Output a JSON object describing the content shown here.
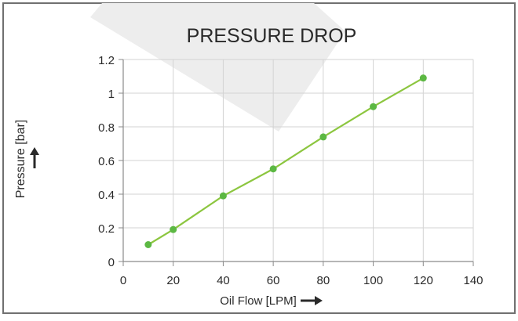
{
  "chart_data": {
    "type": "line",
    "title": "PRESSURE DROP",
    "xlabel": "Oil Flow [LPM]",
    "ylabel": "Pressure [bar]",
    "xlim": [
      0,
      140
    ],
    "ylim": [
      0,
      1.2
    ],
    "x_ticks": [
      0,
      20,
      40,
      60,
      80,
      100,
      120,
      140
    ],
    "y_ticks": [
      {
        "value": 0,
        "label": "0"
      },
      {
        "value": 0.2,
        "label": "0.2"
      },
      {
        "value": 0.4,
        "label": "0.4"
      },
      {
        "value": 0.6,
        "label": "0.6"
      },
      {
        "value": 0.8,
        "label": "0.8"
      },
      {
        "value": 1.0,
        "label": "1"
      },
      {
        "value": 1.2,
        "label": "1.2"
      }
    ],
    "grid": true,
    "legend": "none",
    "series": [
      {
        "name": "Pressure drop",
        "color": "#8cc63f",
        "marker_color": "#5cb843",
        "x": [
          10,
          20,
          40,
          60,
          80,
          100,
          120
        ],
        "y": [
          0.1,
          0.19,
          0.39,
          0.55,
          0.74,
          0.92,
          1.09
        ]
      }
    ]
  },
  "colors": {
    "frame": "#707070",
    "grid": "#d3d3d3",
    "axis": "#8a8a8a",
    "text": "#2a2a2a",
    "watermark": "#ededed"
  }
}
